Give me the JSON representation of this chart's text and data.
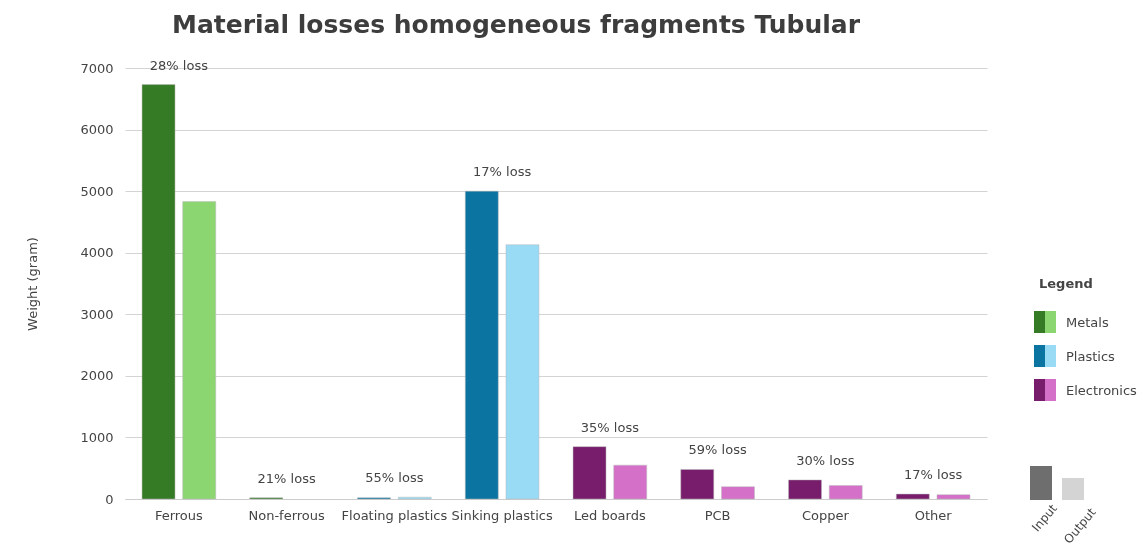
{
  "chart_data": {
    "type": "bar",
    "title": "Material losses homogeneous fragments Tubular",
    "ylabel": "Weight (gram)",
    "legend_title": "Legend",
    "categories": [
      "Ferrous",
      "Non-ferrous",
      "Floating plastics",
      "Sinking plastics",
      "Led boards",
      "PCB",
      "Copper",
      "Other"
    ],
    "series": [
      {
        "name": "Input",
        "color": "#6e6e6e",
        "colors": [
          "#357a24",
          "#357a24",
          "#0b74a1",
          "#0b74a1",
          "#771d6b",
          "#771d6b",
          "#771d6b",
          "#771d6b"
        ],
        "values": [
          6730,
          20,
          20,
          5000,
          850,
          480,
          310,
          80
        ]
      },
      {
        "name": "Output",
        "color": "#d4d4d4",
        "colors": [
          "#8cd672",
          "#8cd672",
          "#99daf5",
          "#99daf5",
          "#d470c8",
          "#d470c8",
          "#d470c8",
          "#d470c8"
        ],
        "values": [
          4830,
          null,
          30,
          4130,
          550,
          200,
          220,
          70
        ]
      }
    ],
    "ylim": [
      0,
      7000
    ],
    "yticks": [
      0,
      1000,
      2000,
      3000,
      4000,
      5000,
      6000,
      7000
    ],
    "grid": "y",
    "legend": "right",
    "annotations": [
      {
        "text": "28% loss",
        "x": "Ferrous",
        "y": 6730
      },
      {
        "text": "21% loss",
        "x": "Non-ferrous",
        "y": 20
      },
      {
        "text": "55% loss",
        "x": "Floating plastics",
        "y": 30
      },
      {
        "text": "17% loss",
        "x": "Sinking plastics",
        "y": 5000
      },
      {
        "text": "35% loss",
        "x": "Led boards",
        "y": 850
      },
      {
        "text": "59% loss",
        "x": "PCB",
        "y": 480
      },
      {
        "text": "30% loss",
        "x": "Copper",
        "y": 310
      },
      {
        "text": "17% loss",
        "x": "Other",
        "y": 80
      },
      "Metals",
      "Plastics",
      "Electronics"
    ]
  }
}
